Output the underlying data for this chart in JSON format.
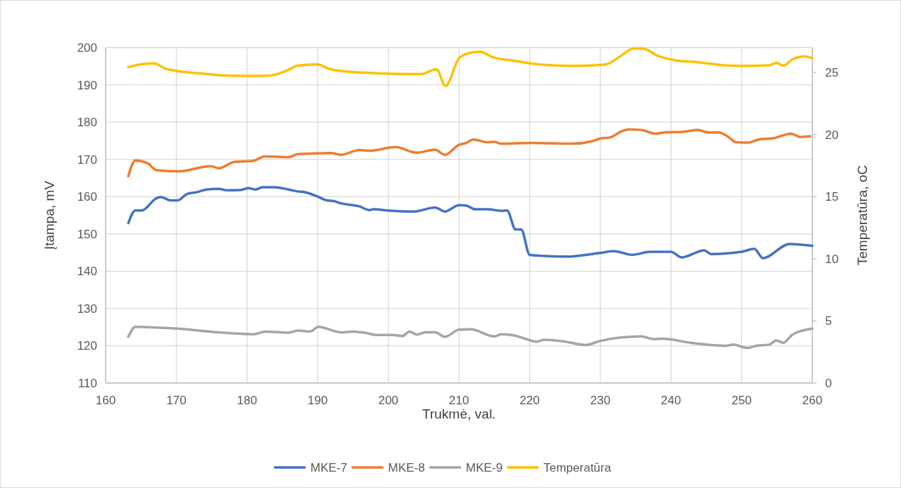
{
  "chart_data": {
    "type": "line",
    "xlabel": "Trukmė, val.",
    "ylabel": "Įtampa, mV",
    "y2label": "Temperatūra, oC",
    "xlim": [
      160,
      260
    ],
    "xticks": [
      160,
      170,
      180,
      190,
      200,
      210,
      220,
      230,
      240,
      250,
      260
    ],
    "ylim": [
      110,
      200
    ],
    "yticks": [
      110,
      120,
      130,
      140,
      150,
      160,
      170,
      180,
      190,
      200
    ],
    "y2lim": [
      0,
      27
    ],
    "y2ticks": [
      0,
      5,
      10,
      15,
      20,
      25
    ],
    "grid": true,
    "legend": "bottom",
    "marker": "none",
    "line_style": "solid",
    "series": [
      {
        "name": "MKE-7",
        "color": "#4472c4",
        "x": [
          163.2,
          164.2,
          165.1,
          167.2,
          167.8,
          169.2,
          170.2,
          171.5,
          172.9,
          174.2,
          175.9,
          177.2,
          179.2,
          180.2,
          181.2,
          182.2,
          183.9,
          185.9,
          187.2,
          188.2,
          189.9,
          191.3,
          192.3,
          193.3,
          195.9,
          197.3,
          197.9,
          199.9,
          203.6,
          206.6,
          208,
          210,
          211,
          212.3,
          214,
          216,
          216.8,
          218,
          218.8,
          220,
          222,
          225,
          230,
          231.9,
          234.5,
          237,
          240,
          241.5,
          244.7,
          245.7,
          250,
          251.8,
          253,
          256.8,
          260
        ],
        "values": [
          152.9,
          156.3,
          156.3,
          159.6,
          159.9,
          159,
          159,
          160.7,
          161.2,
          161.9,
          162.1,
          161.7,
          161.8,
          162.3,
          161.9,
          162.5,
          162.5,
          161.9,
          161.4,
          161.2,
          160.1,
          159,
          158.8,
          158.2,
          157.4,
          156.4,
          156.6,
          156.3,
          156,
          157.1,
          156,
          157.7,
          157.6,
          156.6,
          156.6,
          156.2,
          156.3,
          151.2,
          151.2,
          144.4,
          144.1,
          143.9,
          144.9,
          145.4,
          144.4,
          145.2,
          145.2,
          143.7,
          145.6,
          144.6,
          145.2,
          146,
          143.5,
          147.3,
          146.8
        ]
      },
      {
        "name": "MKE-8",
        "color": "#ed7d31",
        "x": [
          163.2,
          164.2,
          165.9,
          167.2,
          170.5,
          174.8,
          176,
          178.2,
          180.9,
          182.5,
          185.9,
          187.2,
          191.9,
          193.3,
          195.9,
          197.3,
          201,
          204,
          206.6,
          208,
          210,
          211,
          212,
          214,
          215,
          216,
          220,
          226,
          228.7,
          230,
          231.4,
          233.1,
          234.1,
          235.8,
          237.8,
          239.1,
          241.8,
          243.8,
          245.2,
          246.8,
          248.2,
          249.2,
          250.9,
          252.6,
          254.3,
          257,
          258.3,
          259.7
        ],
        "values": [
          165.5,
          169.7,
          169,
          167.1,
          166.8,
          168.2,
          167.6,
          169.3,
          169.6,
          170.8,
          170.6,
          171.4,
          171.7,
          171.2,
          172.5,
          172.3,
          173.3,
          171.8,
          172.6,
          171.2,
          173.9,
          174.4,
          175.3,
          174.6,
          174.7,
          174.2,
          174.4,
          174.2,
          174.8,
          175.6,
          175.9,
          177.6,
          178,
          177.9,
          176.9,
          177.2,
          177.4,
          177.9,
          177.2,
          177.2,
          175.9,
          174.6,
          174.5,
          175.4,
          175.6,
          176.9,
          176,
          176.2
        ]
      },
      {
        "name": "MKE-9",
        "color": "#a5a5a5",
        "x": [
          163.2,
          164.2,
          167.2,
          170.2,
          175.9,
          180.9,
          182.6,
          185.9,
          187.2,
          188.9,
          190.1,
          193.3,
          194.9,
          196.9,
          198.3,
          200.6,
          202,
          203,
          204,
          205.3,
          206.6,
          208,
          210,
          211.7,
          215,
          216,
          218,
          219.3,
          221,
          222,
          224.7,
          227.9,
          230,
          235.8,
          237.5,
          238.8,
          242.8,
          247.8,
          248.8,
          250.8,
          252.1,
          253.9,
          254.9,
          255.9,
          257.2,
          260
        ],
        "values": [
          122.4,
          125.1,
          124.9,
          124.6,
          123.6,
          123.1,
          123.8,
          123.5,
          124.1,
          123.8,
          125.1,
          123.6,
          123.8,
          123.4,
          122.9,
          122.9,
          122.6,
          123.8,
          123,
          123.6,
          123.6,
          122.4,
          124.3,
          124.4,
          122.5,
          123.1,
          122.7,
          121.9,
          121.1,
          121.6,
          121.2,
          120.2,
          121.3,
          122.5,
          121.8,
          121.9,
          120.8,
          120,
          120.3,
          119.4,
          120,
          120.3,
          121.4,
          120.8,
          123,
          124.6
        ]
      },
      {
        "name": "Temperatūra",
        "color": "#ffc000",
        "axis": "y2",
        "x": [
          163.2,
          164.8,
          166.8,
          168.5,
          170.2,
          173.5,
          175.9,
          179.2,
          182.6,
          183.9,
          185.6,
          187.2,
          189.9,
          191.6,
          194.3,
          197.6,
          204.6,
          206.8,
          208.1,
          210,
          211.3,
          213,
          214.7,
          218,
          220,
          222,
          226,
          230.7,
          232.7,
          234.7,
          236,
          238.1,
          240.7,
          243.1,
          247.5,
          250,
          253.9,
          254.9,
          255.9,
          257.2,
          258.9,
          260
        ],
        "values": [
          25.42,
          25.63,
          25.73,
          25.29,
          25.1,
          24.91,
          24.78,
          24.72,
          24.72,
          24.81,
          25.14,
          25.54,
          25.65,
          25.29,
          25.06,
          24.95,
          24.86,
          25.25,
          23.92,
          26.14,
          26.53,
          26.66,
          26.24,
          25.92,
          25.73,
          25.61,
          25.52,
          25.63,
          26.24,
          26.91,
          26.91,
          26.34,
          25.96,
          25.86,
          25.57,
          25.52,
          25.57,
          25.77,
          25.54,
          26.05,
          26.28,
          26.14
        ]
      }
    ]
  }
}
